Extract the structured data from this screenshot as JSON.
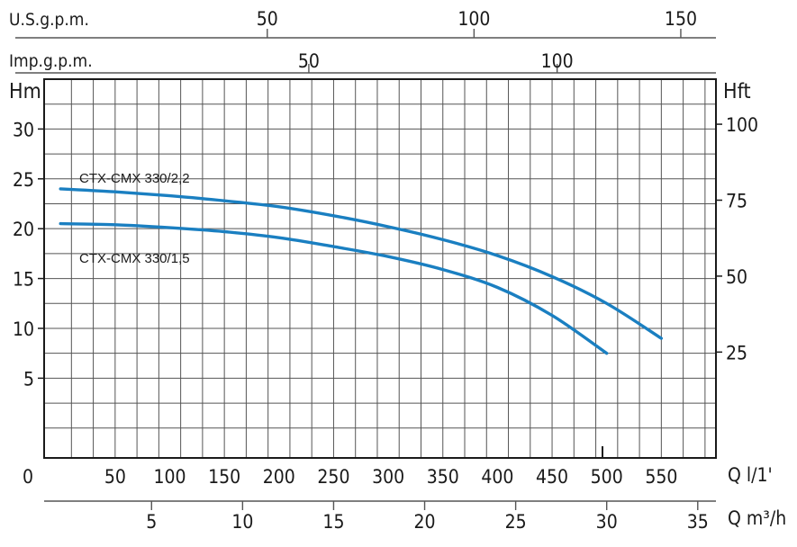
{
  "chart_data": {
    "type": "line",
    "title": "",
    "y_left": {
      "label": "Hm",
      "ticks": [
        5,
        10,
        15,
        20,
        25,
        30
      ],
      "range": [
        -3,
        35
      ]
    },
    "y_right": {
      "label": "Hft",
      "ticks": [
        25,
        50,
        75,
        100
      ]
    },
    "x_main": {
      "unit_label": "Q l/1'",
      "ticks": [
        0,
        50,
        100,
        150,
        200,
        250,
        300,
        350,
        400,
        450,
        500,
        550
      ],
      "range": [
        -15,
        600
      ]
    },
    "x_m3h": {
      "unit_label": "Q m³/h",
      "ticks": [
        5,
        10,
        15,
        20,
        25,
        30,
        35
      ]
    },
    "x_usgpm": {
      "label": "U.S.g.p.m.",
      "ticks": [
        50,
        100,
        150
      ]
    },
    "x_impgpm": {
      "label": "Imp.g.p.m.",
      "ticks": [
        50,
        100
      ]
    },
    "series": [
      {
        "name": "CTX-CMX 330/2,2",
        "color": "#1a7fc1",
        "points": [
          [
            0,
            24
          ],
          [
            50,
            23.7
          ],
          [
            100,
            23.3
          ],
          [
            150,
            22.8
          ],
          [
            200,
            22.2
          ],
          [
            250,
            21.3
          ],
          [
            300,
            20.2
          ],
          [
            350,
            18.9
          ],
          [
            400,
            17.3
          ],
          [
            450,
            15.2
          ],
          [
            500,
            12.5
          ],
          [
            550,
            9
          ]
        ]
      },
      {
        "name": "CTX-CMX 330/1,5",
        "color": "#1a7fc1",
        "points": [
          [
            0,
            20.5
          ],
          [
            50,
            20.4
          ],
          [
            100,
            20.1
          ],
          [
            150,
            19.7
          ],
          [
            200,
            19.1
          ],
          [
            250,
            18.2
          ],
          [
            300,
            17.2
          ],
          [
            350,
            15.9
          ],
          [
            400,
            14.1
          ],
          [
            450,
            11.3
          ],
          [
            500,
            7.5
          ]
        ]
      }
    ]
  }
}
